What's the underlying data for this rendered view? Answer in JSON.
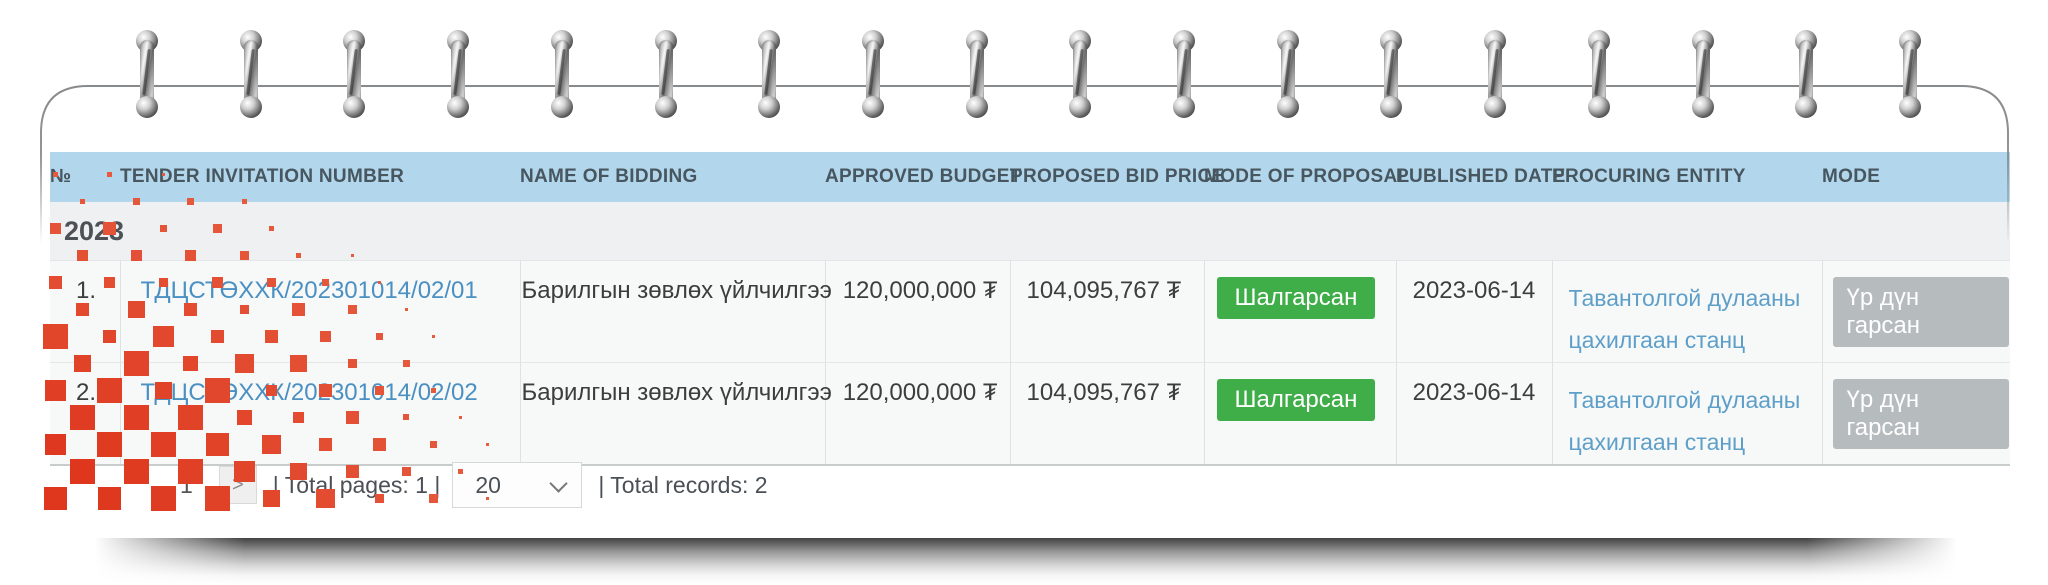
{
  "table": {
    "columns": [
      "№",
      "TENDER INVITATION NUMBER",
      "NAME OF BIDDING",
      "APPROVED BUDGET",
      "PROPOSED BID PRICE",
      "MODE OF PROPOSAL",
      "PUBLISHED DATE",
      "PROCURING ENTITY",
      "MODE"
    ],
    "group_label": "2023",
    "rows": [
      {
        "no": "1.",
        "tender_invitation_number": "ТДЦСТӨХХК/202301014/02/01",
        "name_of_bidding": "Барилгын зөвлөх үйлчилгээ",
        "approved_budget": "120,000,000 ₮",
        "proposed_bid_price": "104,095,767 ₮",
        "mode_of_proposal": "Шалгарсан",
        "published_date": "2023-06-14",
        "procuring_entity": "Тавантолгой дулааны цахилгаан станц",
        "mode": "Үр дүн гарсан"
      },
      {
        "no": "2.",
        "tender_invitation_number": "ТДЦСТӨХХК/202301014/02/02",
        "name_of_bidding": "Барилгын зөвлөх үйлчилгээ",
        "approved_budget": "120,000,000 ₮",
        "proposed_bid_price": "104,095,767 ₮",
        "mode_of_proposal": "Шалгарсан",
        "published_date": "2023-06-14",
        "procuring_entity": "Тавантолгой дулааны цахилгаан станц",
        "mode": "Үр дүн гарсан"
      }
    ]
  },
  "pagination": {
    "current_page": "1",
    "next_icon": ">",
    "total_pages_text": "| Total pages: 1 |",
    "page_size": "20",
    "total_records_text": "| Total records: 2"
  },
  "colors": {
    "header_bg": "#b2d7ec",
    "header_text": "#47565f",
    "link": "#4b90c2",
    "link_light": "#5d9fc9",
    "status_selected_bg": "#3fae49",
    "result_badge_bg": "#b6bbbe",
    "pattern_red": "#e2472a",
    "row_bg": "#f7f8f8",
    "group_row_bg": "#eef0f1"
  }
}
